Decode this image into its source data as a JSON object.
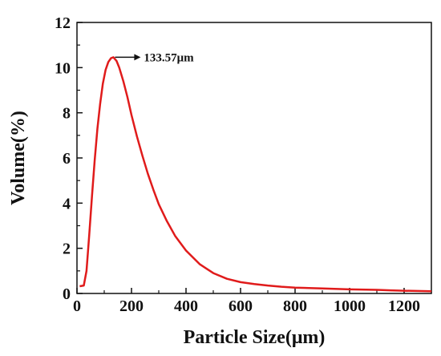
{
  "chart_data": {
    "type": "line",
    "title": "",
    "xlabel": "Particle Size(μm)",
    "ylabel": "Volume(%)",
    "xlim": [
      0,
      1300
    ],
    "ylim": [
      0,
      12
    ],
    "xticks": [
      0,
      200,
      400,
      600,
      800,
      1000,
      1200
    ],
    "yticks": [
      0,
      2,
      4,
      6,
      8,
      10,
      12
    ],
    "grid": false,
    "series": [
      {
        "color": "#e01b1b",
        "x": [
          10,
          25,
          35,
          45,
          55,
          65,
          75,
          85,
          95,
          105,
          115,
          125,
          133.57,
          145,
          155,
          170,
          185,
          200,
          220,
          240,
          260,
          280,
          300,
          330,
          360,
          400,
          450,
          500,
          550,
          600,
          650,
          700,
          750,
          800,
          900,
          1000,
          1100,
          1150,
          1200,
          1300
        ],
        "y": [
          0.32,
          0.35,
          1.0,
          2.6,
          4.3,
          5.9,
          7.3,
          8.4,
          9.3,
          9.9,
          10.25,
          10.42,
          10.46,
          10.3,
          10.0,
          9.4,
          8.7,
          7.9,
          6.95,
          6.1,
          5.3,
          4.6,
          3.95,
          3.2,
          2.55,
          1.9,
          1.3,
          0.9,
          0.65,
          0.5,
          0.42,
          0.35,
          0.3,
          0.26,
          0.22,
          0.18,
          0.16,
          0.14,
          0.12,
          0.1
        ]
      }
    ],
    "annotations": [
      {
        "text": "133.57μm",
        "x": 133.57,
        "y": 10.46
      }
    ]
  }
}
